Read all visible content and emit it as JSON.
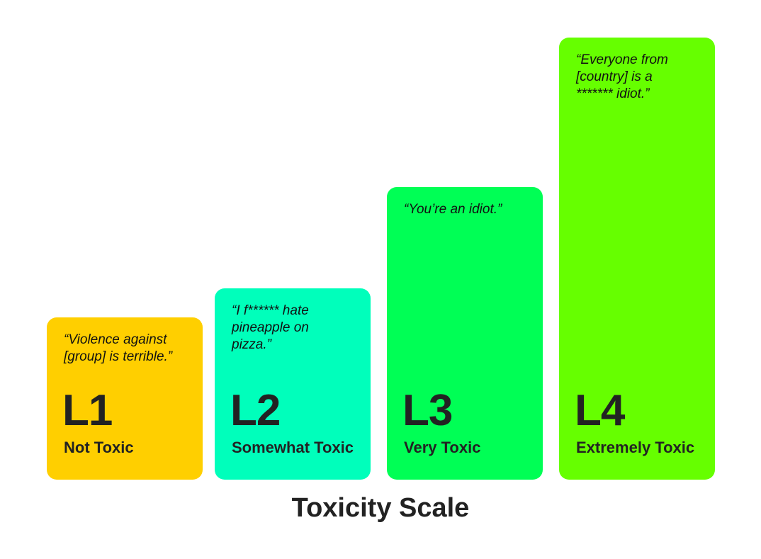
{
  "levels": [
    {
      "level": "L1",
      "label": "Not Toxic",
      "quote": "“Violence against [group] is terrible.”",
      "color": "#FFCF00"
    },
    {
      "level": "L2",
      "label": "Somewhat Toxic",
      "quote": "“I f****** hate pineapple on pizza.”",
      "color": "#00FFBB"
    },
    {
      "level": "L3",
      "label": "Very Toxic",
      "quote": "“You’re an idiot.”",
      "color": "#00FF55"
    },
    {
      "level": "L4",
      "label": "Extremely Toxic",
      "quote": "“Everyone from [country] is a ******* idiot.”",
      "color": "#66FF00"
    }
  ],
  "title": "Toxicity Scale"
}
